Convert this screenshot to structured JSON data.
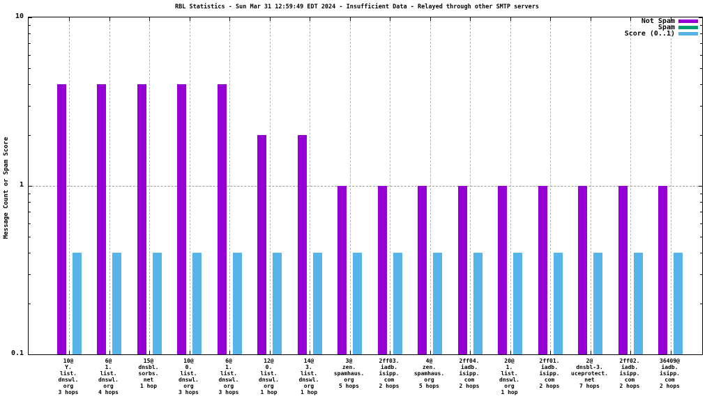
{
  "chart_data": {
    "type": "bar",
    "title": "RBL Statistics - Sun Mar 31 12:59:49 EDT 2024 - Insufficient Data - Relayed through other SMTP servers",
    "ylabel": "Message Count or Spam Score",
    "xlabel": "",
    "y_scale": "log",
    "ylim": [
      0.1,
      10
    ],
    "yticks": [
      {
        "value": 10,
        "label": "10"
      },
      {
        "value": 1,
        "label": "1"
      },
      {
        "value": 0.1,
        "label": "0.1"
      }
    ],
    "grid": {
      "vertical": "dashed-per-category",
      "horizontal_at_1": "dashed"
    },
    "legend_position": "top-right-inside",
    "categories": [
      [
        "10@",
        "Y.",
        "list.",
        "dnswl.",
        "org",
        "3 hops"
      ],
      [
        "6@",
        "1.",
        "list.",
        "dnswl.",
        "org",
        "4 hops"
      ],
      [
        "15@",
        "dnsbl.",
        "sorbs.",
        "net",
        "1 hop"
      ],
      [
        "10@",
        "0.",
        "list.",
        "dnswl.",
        "org",
        "3 hops"
      ],
      [
        "6@",
        "1.",
        "list.",
        "dnswl.",
        "org",
        "3 hops"
      ],
      [
        "12@",
        "0.",
        "list.",
        "dnswl.",
        "org",
        "1 hop"
      ],
      [
        "14@",
        "3.",
        "list.",
        "dnswl.",
        "org",
        "1 hop"
      ],
      [
        "3@",
        "zen.",
        "spamhaus.",
        "org",
        "5 hops"
      ],
      [
        "2ff03.",
        "iadb.",
        "isipp.",
        "com",
        "2 hops"
      ],
      [
        "4@",
        "zen.",
        "spamhaus.",
        "org",
        "5 hops"
      ],
      [
        "2ff04.",
        "iadb.",
        "isipp.",
        "com",
        "2 hops"
      ],
      [
        "20@",
        "1.",
        "list.",
        "dnswl.",
        "org",
        "1 hop"
      ],
      [
        "2ff01.",
        "iadb.",
        "isipp.",
        "com",
        "2 hops"
      ],
      [
        "2@",
        "dnsbl-3.",
        "uceprotect.",
        "net",
        "7 hops"
      ],
      [
        "2ff02.",
        "iadb.",
        "isipp.",
        "com",
        "2 hops"
      ],
      [
        "36409@",
        "iadb.",
        "isipp.",
        "com",
        "2 hops"
      ]
    ],
    "series": [
      {
        "name": "Not Spam",
        "color": "#9400d3",
        "values": [
          4,
          4,
          4,
          4,
          4,
          2,
          2,
          1,
          1,
          1,
          1,
          1,
          1,
          1,
          1,
          1
        ]
      },
      {
        "name": "Spam",
        "color": "#009e73",
        "values": [
          0,
          0,
          0,
          0,
          0,
          0,
          0,
          0,
          0,
          0,
          0,
          0,
          0,
          0,
          0,
          0
        ]
      },
      {
        "name": "Score (0..1)",
        "color": "#56b4e9",
        "values": [
          0.4,
          0.4,
          0.4,
          0.4,
          0.4,
          0.4,
          0.4,
          0.4,
          0.4,
          0.4,
          0.4,
          0.4,
          0.4,
          0.4,
          0.4,
          0.4
        ]
      }
    ]
  }
}
